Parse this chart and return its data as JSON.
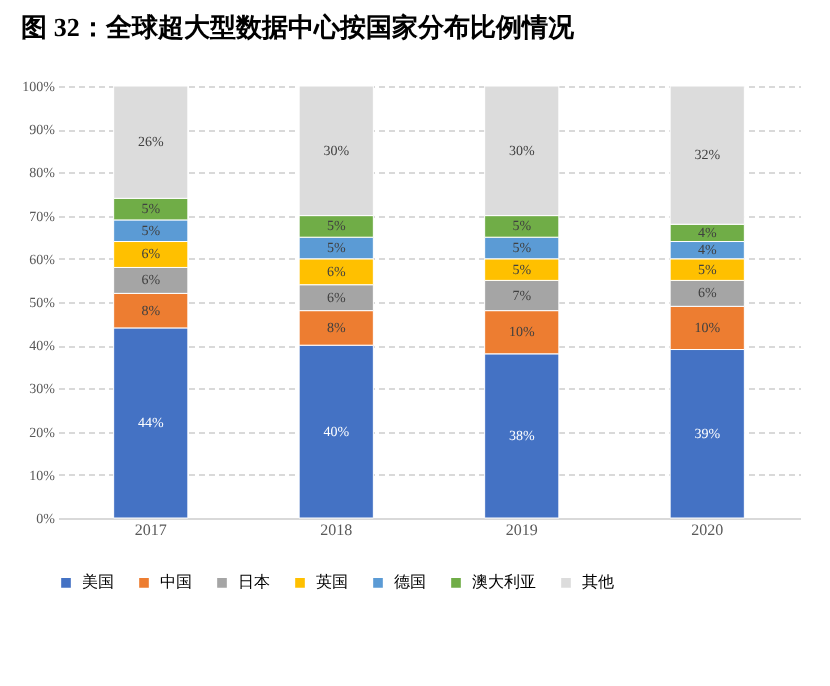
{
  "chart_data": {
    "type": "bar",
    "stacked": true,
    "title": "图 32：全球超大型数据中心按国家分布比例情况",
    "categories": [
      "2017",
      "2018",
      "2019",
      "2020"
    ],
    "series": [
      {
        "name": "美国",
        "color": "#4472c4",
        "values": [
          44,
          40,
          38,
          39
        ],
        "value_labels": [
          "44%",
          "40%",
          "38%",
          "39%"
        ]
      },
      {
        "name": "中国",
        "color": "#ed7d31",
        "values": [
          8,
          8,
          10,
          10
        ],
        "value_labels": [
          "8%",
          "8%",
          "10%",
          "10%"
        ]
      },
      {
        "name": "日本",
        "color": "#a5a5a5",
        "values": [
          6,
          6,
          7,
          6
        ],
        "value_labels": [
          "6%",
          "6%",
          "7%",
          "6%"
        ]
      },
      {
        "name": "英国",
        "color": "#ffc000",
        "values": [
          6,
          6,
          5,
          5
        ],
        "value_labels": [
          "6%",
          "6%",
          "5%",
          "5%"
        ]
      },
      {
        "name": "德国",
        "color": "#5b9bd5",
        "values": [
          5,
          5,
          5,
          4
        ],
        "value_labels": [
          "5%",
          "5%",
          "5%",
          "4%"
        ]
      },
      {
        "name": "澳大利亚",
        "color": "#70ad47",
        "values": [
          5,
          5,
          5,
          4
        ],
        "value_labels": [
          "5%",
          "5%",
          "5%",
          "4%"
        ]
      },
      {
        "name": "其他",
        "color": "#dcdcdc",
        "values": [
          26,
          30,
          30,
          32
        ],
        "value_labels": [
          "26%",
          "30%",
          "30%",
          "32%"
        ]
      }
    ],
    "ylim": [
      0,
      100
    ],
    "yticks": [
      {
        "value": 0,
        "label": "0%"
      },
      {
        "value": 10,
        "label": "10%"
      },
      {
        "value": 20,
        "label": "20%"
      },
      {
        "value": 30,
        "label": "30%"
      },
      {
        "value": 40,
        "label": "40%"
      },
      {
        "value": 50,
        "label": "50%"
      },
      {
        "value": 60,
        "label": "60%"
      },
      {
        "value": 70,
        "label": "70%"
      },
      {
        "value": 80,
        "label": "80%"
      },
      {
        "value": 90,
        "label": "90%"
      },
      {
        "value": 100,
        "label": "100%"
      }
    ],
    "grid": "y",
    "legend": "bottom"
  }
}
